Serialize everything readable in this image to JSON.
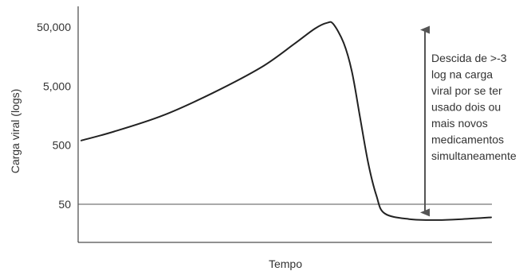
{
  "chart_data": {
    "type": "line",
    "title": "",
    "xlabel": "Tempo",
    "ylabel": "Carga viral (logs)",
    "y_scale": "log",
    "y_ticks": [
      {
        "value": 50,
        "label": "50"
      },
      {
        "value": 500,
        "label": "500"
      },
      {
        "value": 5000,
        "label": "5,000"
      },
      {
        "value": 50000,
        "label": "50,000"
      }
    ],
    "grid": false,
    "series": [
      {
        "values": [
          [
            0.0,
            600
          ],
          [
            0.08,
            850
          ],
          [
            0.2,
            1600
          ],
          [
            0.32,
            3800
          ],
          [
            0.44,
            10500
          ],
          [
            0.52,
            26000
          ],
          [
            0.57,
            47000
          ],
          [
            0.6,
            59000
          ],
          [
            0.615,
            56000
          ],
          [
            0.64,
            27000
          ],
          [
            0.66,
            9000
          ],
          [
            0.68,
            1500
          ],
          [
            0.7,
            250
          ],
          [
            0.72,
            70
          ],
          [
            0.74,
            35
          ],
          [
            0.8,
            28
          ],
          [
            0.87,
            27
          ],
          [
            0.93,
            28
          ],
          [
            1.0,
            30
          ]
        ]
      }
    ],
    "reference_lines": [
      {
        "value": 50
      }
    ],
    "annotation": {
      "arrow_from": 65000,
      "arrow_to": 25,
      "lines": [
        "Descida de >-3",
        "log na carga",
        "viral por se ter",
        "usado dois ou",
        "mais novos",
        "medicamentos",
        "simultaneamente"
      ]
    }
  }
}
